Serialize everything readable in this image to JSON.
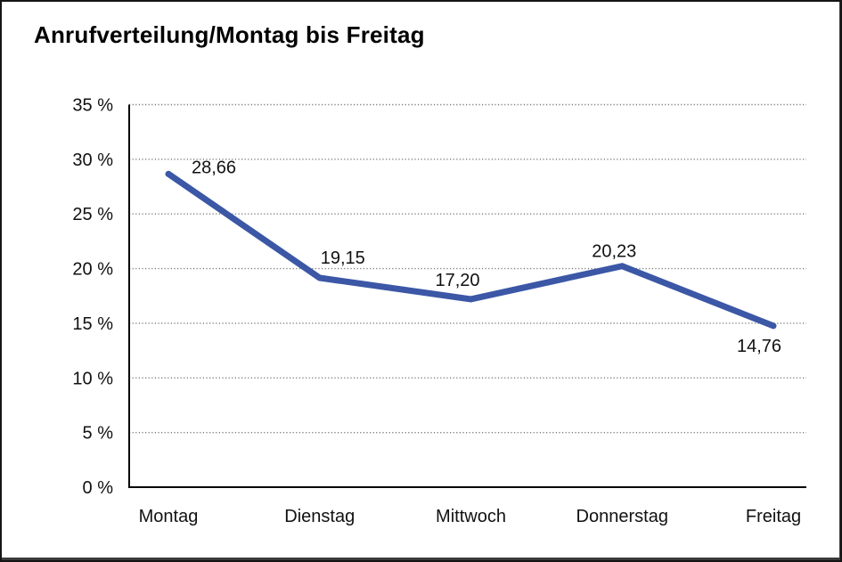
{
  "chart_data": {
    "type": "line",
    "title": "Anrufverteilung/Montag bis Freitag",
    "categories": [
      "Montag",
      "Dienstag",
      "Mittwoch",
      "Donnerstag",
      "Freitag"
    ],
    "series": [
      {
        "name": "Anrufverteilung",
        "values": [
          28.66,
          19.15,
          17.2,
          20.23,
          14.76
        ],
        "value_labels": [
          "28,66",
          "19,15",
          "17,20",
          "20,23",
          "14,76"
        ]
      }
    ],
    "xlabel": "",
    "ylabel": "",
    "ylim": [
      0,
      35
    ],
    "ytick_step": 5,
    "ytick_labels": [
      "0 %",
      "5 %",
      "10 %",
      "15 %",
      "20 %",
      "25 %",
      "30 %",
      "35 %"
    ],
    "grid": "horizontal-dotted",
    "legend": "none",
    "colors": {
      "line": "#3B57A6",
      "axis": "#000000",
      "gridline": "#7a7a7a",
      "text": "#111111",
      "background": "#ffffff"
    }
  }
}
